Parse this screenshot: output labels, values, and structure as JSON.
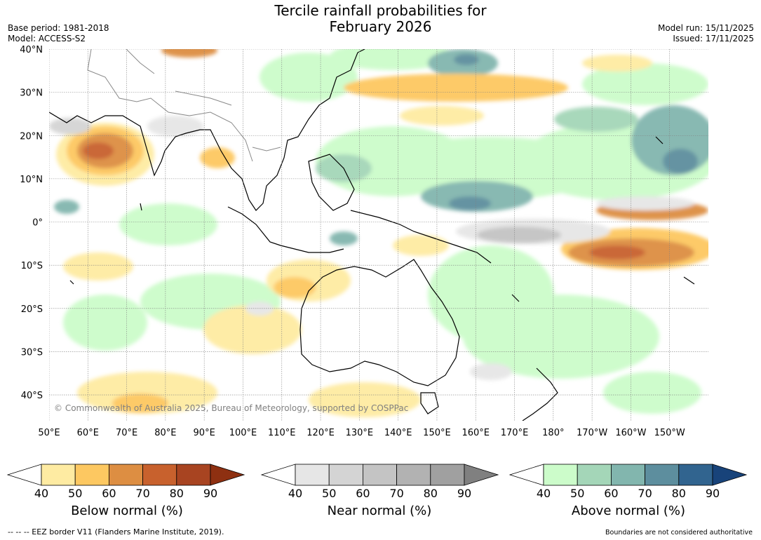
{
  "title_line1": "Tercile rainfall probabilities for",
  "title_line2": "February 2026",
  "base_period": "Base period: 1981-2018",
  "model": "Model: ACCESS-S2",
  "model_run": "Model run: 15/11/2025",
  "issued": "Issued: 17/11/2025",
  "copyright": "© Commonwealth of Australia 2025, Bureau of Meteorology, supported by COSPPac",
  "lon_labels": [
    "50°E",
    "60°E",
    "70°E",
    "80°E",
    "90°E",
    "100°E",
    "110°E",
    "120°E",
    "130°E",
    "140°E",
    "150°E",
    "160°E",
    "170°E",
    "180°",
    "170°W",
    "160°W",
    "150°W"
  ],
  "lat_labels": [
    "40°N",
    "30°N",
    "20°N",
    "10°N",
    "0°",
    "10°S",
    "20°S",
    "30°S",
    "40°S"
  ],
  "colorbars": [
    {
      "label": "Below normal (%)",
      "ticks": [
        "40",
        "50",
        "60",
        "70",
        "80",
        "90"
      ],
      "colors": [
        "#ffffff",
        "#feeba2",
        "#fdc861",
        "#dd8e42",
        "#c8612d",
        "#a84421",
        "#8e3011"
      ]
    },
    {
      "label": "Near normal (%)",
      "ticks": [
        "40",
        "50",
        "60",
        "70",
        "80",
        "90"
      ],
      "colors": [
        "#ffffff",
        "#e6e6e6",
        "#d4d4d4",
        "#c4c4c4",
        "#b2b2b2",
        "#a0a0a0",
        "#808080"
      ]
    },
    {
      "label": "Above normal (%)",
      "ticks": [
        "40",
        "50",
        "60",
        "70",
        "80",
        "90"
      ],
      "colors": [
        "#ffffff",
        "#ccfcca",
        "#a4d6b8",
        "#82b6ae",
        "#5d8e9e",
        "#31648f",
        "#18437a"
      ]
    }
  ],
  "footer_left": "--  --  -- EEZ border V11 (Flanders Marine Institute, 2019).",
  "footer_right": "Boundaries are not considered authoritative"
}
